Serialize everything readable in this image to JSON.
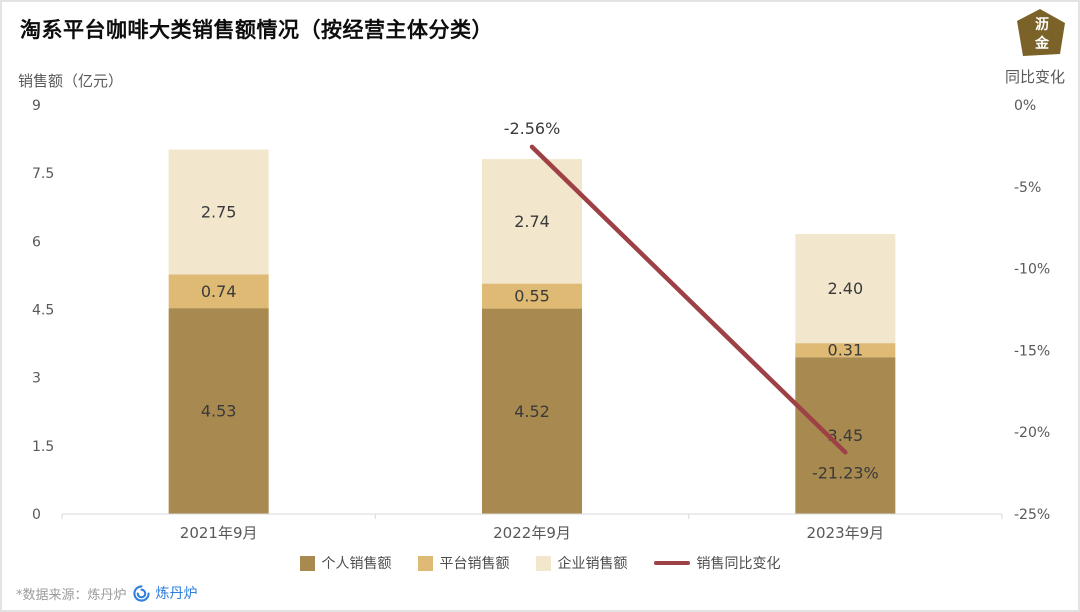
{
  "title": "淘系平台咖啡大类销售额情况（按经营主体分类）",
  "badge": {
    "line1": "沥",
    "line2": "金"
  },
  "left_axis": {
    "title": "销售额（亿元）"
  },
  "right_axis": {
    "title": "同比变化"
  },
  "footer": {
    "source_text": "*数据来源：炼丹炉",
    "brand": "炼丹炉"
  },
  "chart_data": {
    "type": "bar",
    "subtype": "stacked-bars-with-line",
    "categories": [
      "2021年9月",
      "2022年9月",
      "2023年9月"
    ],
    "series": [
      {
        "name": "个人销售额",
        "color": "#a8894f",
        "values": [
          4.53,
          4.52,
          3.45
        ]
      },
      {
        "name": "平台销售额",
        "color": "#dfba74",
        "values": [
          0.74,
          0.55,
          0.31
        ]
      },
      {
        "name": "企业销售额",
        "color": "#f2e6cd",
        "values": [
          2.75,
          2.74,
          2.4
        ]
      }
    ],
    "line_series": {
      "name": "销售同比变化",
      "color": "#9d4146",
      "values": [
        null,
        -2.56,
        -21.23
      ],
      "labels": [
        "",
        "-2.56%",
        "-21.23%"
      ],
      "label_placement": [
        "",
        "above",
        "below"
      ]
    },
    "left_ylim": [
      0,
      9
    ],
    "right_ylim": [
      -25,
      0
    ],
    "left_ticks": [
      9,
      7.5,
      6,
      4.5,
      3,
      1.5,
      0
    ],
    "right_ticks": [
      0,
      -5,
      -10,
      -15,
      -20,
      -25
    ],
    "grid": false,
    "legend_position": "bottom-center"
  }
}
